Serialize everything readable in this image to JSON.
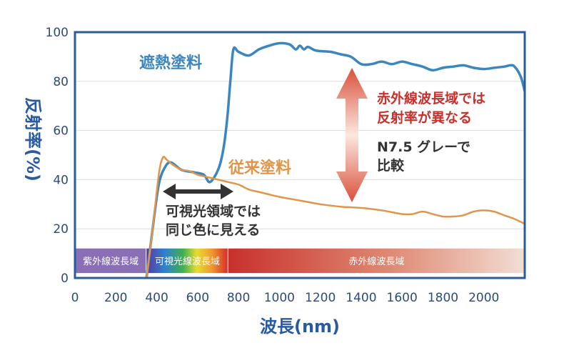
{
  "chart_data": {
    "type": "line",
    "xlabel": "波長(nm)",
    "ylabel": "反射率(%)",
    "xlim": [
      0,
      2200
    ],
    "ylim": [
      0,
      100
    ],
    "xticks": [
      0,
      200,
      400,
      600,
      800,
      1000,
      1200,
      1400,
      1600,
      1800,
      2000
    ],
    "yticks": [
      0,
      20,
      40,
      60,
      80,
      100
    ],
    "grid": true,
    "series": [
      {
        "name": "遮熱塗料",
        "color": "#3b86bf",
        "x": [
          350,
          380,
          410,
          440,
          470,
          520,
          580,
          630,
          660,
          700,
          725,
          745,
          760,
          775,
          800,
          850,
          900,
          950,
          1000,
          1050,
          1080,
          1100,
          1120,
          1140,
          1180,
          1250,
          1300,
          1350,
          1400,
          1450,
          1500,
          1550,
          1600,
          1650,
          1700,
          1750,
          1800,
          1850,
          1900,
          1950,
          2000,
          2050,
          2100,
          2130,
          2150,
          2180,
          2200
        ],
        "y": [
          0,
          20,
          38,
          45,
          47,
          44,
          43,
          42,
          39,
          44,
          52,
          65,
          80,
          93,
          92,
          90.5,
          93,
          94.5,
          95.5,
          95,
          93,
          94.5,
          93,
          94,
          92.5,
          92,
          91,
          90,
          87,
          87,
          88,
          87,
          88,
          87,
          86,
          84.5,
          85.5,
          86,
          86.5,
          85.5,
          85,
          85.5,
          86,
          86.5,
          86,
          82,
          76
        ]
      },
      {
        "name": "従来塗料",
        "color": "#e0954a",
        "x": [
          350,
          380,
          410,
          430,
          450,
          480,
          520,
          560,
          600,
          650,
          700,
          750,
          800,
          850,
          900,
          1000,
          1100,
          1200,
          1300,
          1400,
          1500,
          1600,
          1650,
          1700,
          1750,
          1800,
          1850,
          1900,
          1950,
          2000,
          2050,
          2100,
          2150,
          2200
        ],
        "y": [
          0,
          20,
          42,
          49,
          48,
          46,
          44,
          43.5,
          42,
          41,
          40,
          39,
          38,
          36,
          35,
          33,
          31.5,
          30,
          29,
          28.5,
          27.5,
          26,
          26,
          27,
          26,
          25,
          25,
          25.5,
          27,
          27.5,
          27,
          25.5,
          24,
          22
        ]
      }
    ],
    "bands": [
      {
        "label": "紫外線波長域",
        "from": 0,
        "to": 350
      },
      {
        "label": "可視光線波長域",
        "from": 350,
        "to": 750
      },
      {
        "label": "赤外線波長域",
        "from": 750,
        "to": 2200
      }
    ],
    "annotations": {
      "visible_note_line1": "可視光領域では",
      "visible_note_line2": "同じ色に見える",
      "ir_note_line1": "赤外線波長域では",
      "ir_note_line2": "反射率が異なる",
      "compare_line1": "N7.5 グレーで",
      "compare_line2": "比較"
    },
    "colors": {
      "axis": "#2a5aa0",
      "grid": "#d8dde6",
      "uv": "#8a6fb6",
      "ir_start": "#c8302c",
      "ir_end": "#f0d8cf",
      "arrow_dark": "#333333"
    }
  }
}
